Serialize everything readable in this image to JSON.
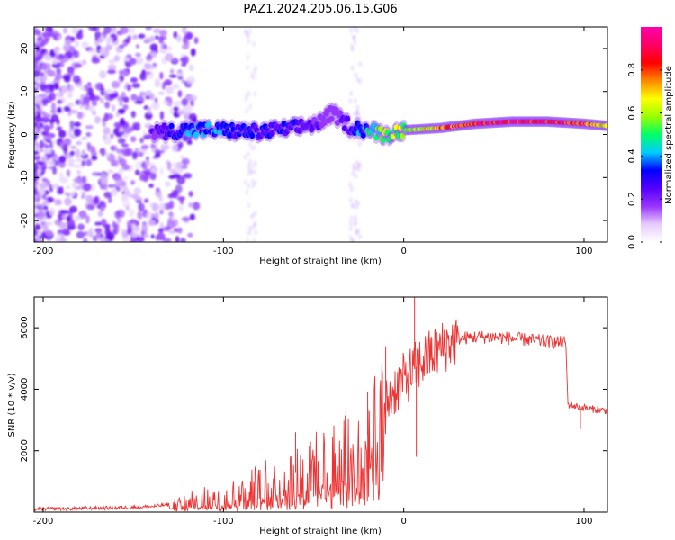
{
  "figure_title": "PAZ1.2024.205.06.15.G06",
  "chart_data": [
    {
      "type": "heatmap",
      "xlabel": "Height of straight line (km)",
      "ylabel": "Frequency (Hz)",
      "xlim": [
        -205,
        113
      ],
      "ylim": [
        -25,
        25
      ],
      "x_ticks": [
        -200,
        -100,
        0,
        100
      ],
      "y_ticks": [
        -20,
        -10,
        0,
        10,
        20
      ],
      "colorbar": {
        "label": "Normalized spectral amplitude",
        "range": [
          0,
          1
        ],
        "ticks": [
          "0.0",
          "0.2",
          "0.4",
          "0.6",
          "0.8"
        ],
        "colormap": [
          "#ffffff",
          "#e6ccff",
          "#9933ff",
          "#5500ff",
          "#0000ff",
          "#00ccff",
          "#00ff66",
          "#99ff00",
          "#ffff00",
          "#ff8800",
          "#ff0000",
          "#ff0066",
          "#ff00aa"
        ]
      },
      "ridge": {
        "x": [
          -140,
          -120,
          -100,
          -80,
          -60,
          -45,
          -40,
          -30,
          -20,
          -10,
          0,
          20,
          40,
          60,
          80,
          100,
          113
        ],
        "freq_hz": [
          0.5,
          1.0,
          1.0,
          0.5,
          1.5,
          3.0,
          5.0,
          2.0,
          1.0,
          0.0,
          1.0,
          1.5,
          2.5,
          3.0,
          3.0,
          2.5,
          2.0
        ],
        "amplitude": [
          0.2,
          0.4,
          0.35,
          0.3,
          0.3,
          0.2,
          0.15,
          0.3,
          0.45,
          0.6,
          0.6,
          0.75,
          0.9,
          0.95,
          0.97,
          0.85,
          0.6
        ]
      }
    },
    {
      "type": "line",
      "xlabel": "Height of straight line (km)",
      "ylabel": "SNR (10 * v/v)",
      "xlim": [
        -205,
        113
      ],
      "ylim": [
        0,
        7000
      ],
      "x_ticks": [
        -200,
        -100,
        0,
        100
      ],
      "y_ticks": [
        2000,
        4000,
        6000
      ],
      "color": "#ee3333",
      "series": [
        {
          "x": [
            -205,
            -180,
            -160,
            -140,
            -130,
            -120,
            -110,
            -100,
            -90,
            -80,
            -70,
            -60,
            -50,
            -45,
            -40,
            -35,
            -30,
            -25,
            -20,
            -15,
            -10,
            -5,
            0,
            5,
            10,
            15,
            20,
            25,
            30,
            40,
            50,
            60,
            70,
            80,
            90,
            91,
            95,
            100,
            105,
            113
          ],
          "y": [
            100,
            120,
            140,
            180,
            250,
            350,
            450,
            550,
            700,
            850,
            1050,
            1300,
            1500,
            1700,
            1800,
            1900,
            1800,
            2000,
            2500,
            3200,
            3500,
            4000,
            4300,
            4600,
            4900,
            5100,
            5300,
            5500,
            5650,
            5700,
            5700,
            5650,
            5600,
            5550,
            5500,
            3500,
            3450,
            3400,
            3350,
            3300
          ],
          "spikes": [
            {
              "x": -60,
              "y": 2600
            },
            {
              "x": -42,
              "y": 3000
            },
            {
              "x": -32,
              "y": 3400
            },
            {
              "x": -20,
              "y": 3900
            },
            {
              "x": -10,
              "y": 5400
            },
            {
              "x": 6,
              "y": 7000
            },
            {
              "x": 7,
              "y": 1800
            },
            {
              "x": 98,
              "y": 2700
            }
          ]
        }
      ]
    }
  ]
}
